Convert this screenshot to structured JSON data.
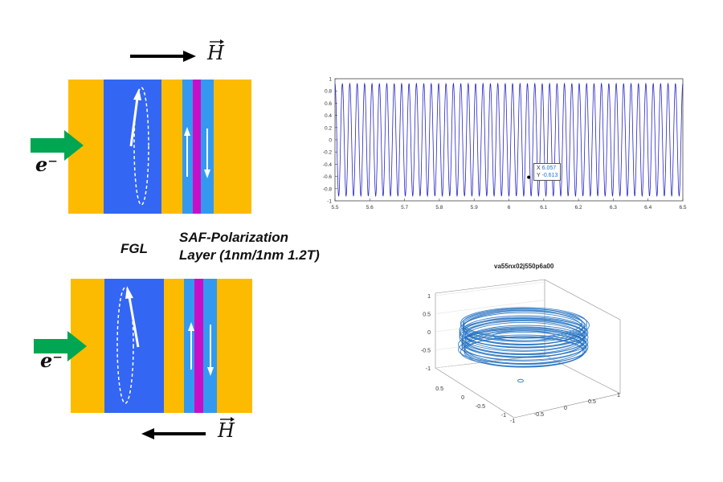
{
  "labels": {
    "fgl": "FGL",
    "saf_line1": "SAF-Polarization",
    "saf_line2": "Layer (1nm/1nm 1.2T)",
    "h_top": "H",
    "h_bottom": "H",
    "electron_top": "e⁻",
    "electron_bottom": "e⁻"
  },
  "colors": {
    "electrode": "#FDBB00",
    "fgl_layer": "#3366F2",
    "saf_layer": "#3399F0",
    "spacer": "#C80FC8",
    "electron_arrow": "#00A651",
    "waveform": "#2525C8",
    "torus": "#1F6FBF"
  },
  "icons": [
    "right-arrow-icon",
    "left-arrow-icon",
    "electron-arrow-icon",
    "magnetization-arrow-icon"
  ],
  "chart_data": [
    {
      "type": "line",
      "title": "",
      "xlabel": "",
      "ylabel": "",
      "xlim": [
        5.5,
        6.5
      ],
      "ylim": [
        -1,
        1
      ],
      "xticks": [
        "5.5",
        "5.6",
        "5.7",
        "5.8",
        "5.9",
        "6",
        "6.1",
        "6.2",
        "6.3",
        "6.4",
        "6.5"
      ],
      "yticks": [
        "1",
        "0.8",
        "0.6",
        "0.4",
        "0.2",
        "0",
        "-0.2",
        "-0.4",
        "-0.6",
        "-0.8",
        "-1"
      ],
      "series": [
        {
          "function": "sinusoid",
          "amplitude": 0.92,
          "cycles_in_window": 47,
          "x_start": 5.5,
          "x_end": 6.5
        }
      ],
      "datatip": {
        "x_label": "X",
        "x": "6.057",
        "y_label": "Y",
        "y": "-0.613"
      }
    },
    {
      "type": "scatter",
      "title": "va55nx02j550p6a00",
      "xlim": [
        -1,
        1
      ],
      "ylim": [
        -1,
        1
      ],
      "zlim": [
        -1,
        1
      ],
      "zticks": [
        "1",
        "0.5",
        "0",
        "-0.5",
        "-1"
      ],
      "xticks": [
        "0.5",
        "0",
        "-0.5",
        "-1"
      ],
      "yticks": [
        "1",
        "0.5",
        "0",
        "-0.5",
        "-1"
      ],
      "shape": "torus trajectory"
    }
  ]
}
